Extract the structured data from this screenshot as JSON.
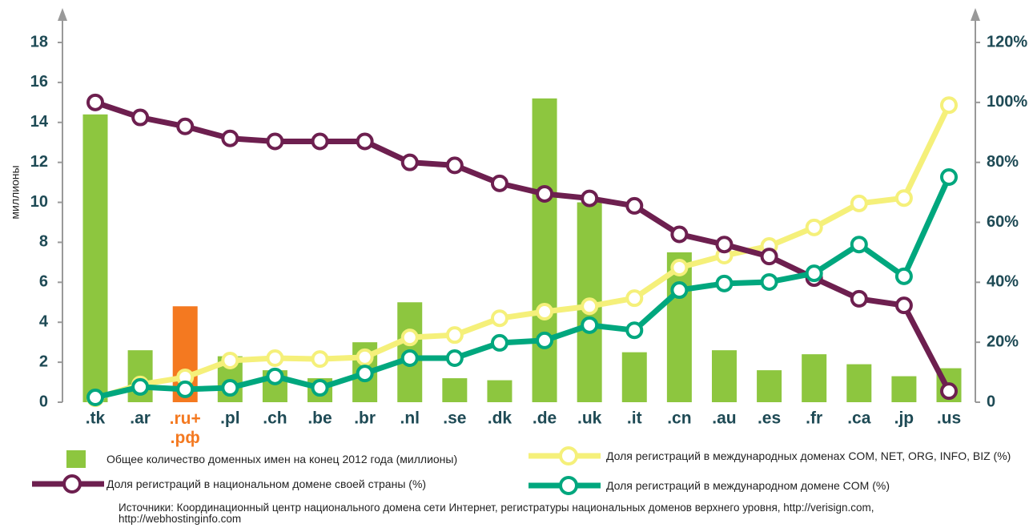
{
  "chart_data": {
    "type": "bar-line",
    "y_axis_label": "миллионы",
    "categories": [
      ".tk",
      ".ar",
      ".ru+ .рф",
      ".pl",
      ".ch",
      ".be",
      ".br",
      ".nl",
      ".se",
      ".dk",
      ".de",
      ".uk",
      ".it",
      ".cn",
      ".au",
      ".es",
      ".fr",
      ".ca",
      ".jp",
      ".us"
    ],
    "category_colors": [
      "#1e4a55",
      "#1e4a55",
      "#f47920",
      "#1e4a55",
      "#1e4a55",
      "#1e4a55",
      "#1e4a55",
      "#1e4a55",
      "#1e4a55",
      "#1e4a55",
      "#1e4a55",
      "#1e4a55",
      "#1e4a55",
      "#1e4a55",
      "#1e4a55",
      "#1e4a55",
      "#1e4a55",
      "#1e4a55",
      "#1e4a55",
      "#1e4a55"
    ],
    "ylim": [
      0,
      18
    ],
    "yticks": [
      0,
      2,
      4,
      6,
      8,
      10,
      12,
      14,
      16,
      18
    ],
    "y2lim": [
      0,
      120
    ],
    "y2ticks": [
      0,
      {
        "value": 20,
        "label": "20%"
      },
      {
        "value": 40,
        "label": "40%"
      },
      {
        "value": 60,
        "label": "60%"
      },
      {
        "value": 80,
        "label": "80%"
      },
      {
        "value": 100,
        "label": "100%"
      },
      {
        "value": 120,
        "label": "120%"
      }
    ],
    "series": [
      {
        "name": "Общее количество доменных имен на конец 2012 года (миллионы)",
        "type": "bar",
        "color": "#8dc63f",
        "colors": [
          "#8dc63f",
          "#8dc63f",
          "#f47920",
          "#8dc63f",
          "#8dc63f",
          "#8dc63f",
          "#8dc63f",
          "#8dc63f",
          "#8dc63f",
          "#8dc63f",
          "#8dc63f",
          "#8dc63f",
          "#8dc63f",
          "#8dc63f",
          "#8dc63f",
          "#8dc63f",
          "#8dc63f",
          "#8dc63f",
          "#8dc63f",
          "#8dc63f"
        ],
        "values": [
          14.4,
          2.6,
          4.8,
          2.3,
          1.6,
          1.2,
          3.0,
          5.0,
          1.2,
          1.1,
          15.2,
          10.0,
          2.5,
          7.5,
          2.6,
          1.6,
          2.4,
          1.9,
          1.3,
          1.7
        ]
      },
      {
        "name": "Доля регистраций в международных доменах COM, NET, ORG, INFO, BIZ (%)",
        "type": "line",
        "axis": "y2",
        "color": "#f5f07a",
        "values": [
          1.3,
          5.9,
          8.3,
          13.9,
          14.7,
          14.4,
          15,
          21.6,
          22.4,
          28,
          30.2,
          32,
          34.7,
          44.9,
          48.9,
          52.1,
          58.3,
          66.3,
          68.1,
          99.1
        ]
      },
      {
        "name": "Доля регистраций в национальном домене своей страны (%)",
        "type": "line",
        "axis": "y2",
        "color": "#6d1f4f",
        "values": [
          100,
          95,
          92,
          88,
          87,
          87,
          87,
          80,
          79,
          73,
          69.5,
          68,
          65.5,
          56,
          52.6,
          48.6,
          41.4,
          34.5,
          32.3,
          3.7
        ]
      },
      {
        "name": "Доля регистраций в международном домене COM (%)",
        "type": "line",
        "axis": "y2",
        "color": "#00a77e",
        "values": [
          1.6,
          5.1,
          4.3,
          4.8,
          8.6,
          4.8,
          9.6,
          14.7,
          14.7,
          19.8,
          20.6,
          25.7,
          24,
          37.4,
          39.6,
          40.1,
          43,
          52.6,
          42,
          75.1
        ]
      }
    ],
    "source": "Источники: Координационный центр национального домена сети Интернет, регистратуры национальных доменов верхнего уровня, http://verisign.com, http://webhostinginfo.com"
  }
}
